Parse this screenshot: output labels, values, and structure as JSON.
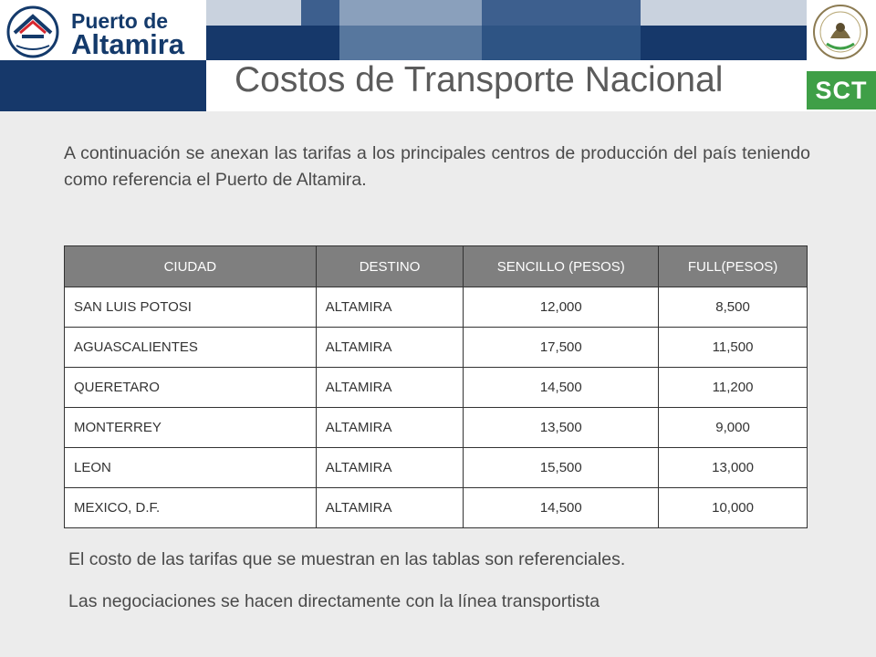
{
  "header": {
    "logo_line1": "Puerto de",
    "logo_line2": "Altamira",
    "title": "Costos de Transporte Nacional",
    "sct_label": "SCT",
    "brand_color": "#16386a",
    "sct_color": "#3f9f47"
  },
  "intro": "A continuación se anexan las tarifas a los principales centros de producción del país teniendo como referencia el Puerto de Altamira.",
  "table": {
    "headers": [
      "CIUDAD",
      "DESTINO",
      "SENCILLO (PESOS)",
      "FULL(PESOS)"
    ],
    "rows": [
      [
        "SAN LUIS POTOSI",
        "ALTAMIRA",
        "12,000",
        "8,500"
      ],
      [
        "AGUASCALIENTES",
        "ALTAMIRA",
        "17,500",
        "11,500"
      ],
      [
        "QUERETARO",
        "ALTAMIRA",
        "14,500",
        "11,200"
      ],
      [
        "MONTERREY",
        "ALTAMIRA",
        "13,500",
        "9,000"
      ],
      [
        "LEON",
        "ALTAMIRA",
        "15,500",
        "13,000"
      ],
      [
        "MEXICO, D.F.",
        "ALTAMIRA",
        "14,500",
        "10,000"
      ]
    ]
  },
  "notes": [
    "El costo de las tarifas que se muestran en las tablas son referenciales.",
    "Las negociaciones se hacen directamente con la línea transportista"
  ]
}
